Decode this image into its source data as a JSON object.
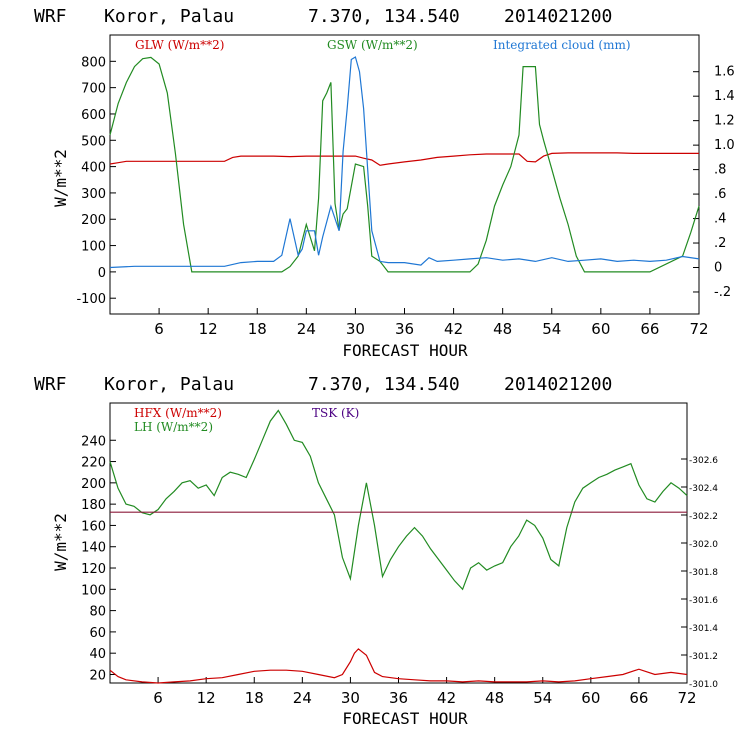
{
  "header_top": {
    "model": "WRF",
    "location": "Koror, Palau",
    "coords": "7.370, 134.540",
    "run": "2014021200"
  },
  "header_bottom": {
    "model": "WRF",
    "location": "Koror, Palau",
    "coords": "7.370, 134.540",
    "run": "2014021200"
  },
  "colors": {
    "red": "#cc0000",
    "green": "#228b22",
    "blue": "#1f77d4",
    "purple": "#4b0082",
    "dark_red": "#8b1a3a",
    "axis": "#000000"
  },
  "chart_data": [
    {
      "type": "line",
      "xlabel": "FORECAST HOUR",
      "ylabel": "W/m**2",
      "xlim": [
        0,
        72
      ],
      "ylim": [
        -160,
        900
      ],
      "y2lim": [
        -0.38,
        1.9
      ],
      "x_ticks": [
        6,
        12,
        18,
        24,
        30,
        36,
        42,
        48,
        54,
        60,
        66,
        72
      ],
      "y_ticks": [
        -100,
        0,
        100,
        200,
        300,
        400,
        500,
        600,
        700,
        800
      ],
      "y2_ticks": [
        "-.2",
        "0",
        ".2",
        ".4",
        ".6",
        ".8",
        "1.0",
        "1.2",
        "1.4",
        "1.6"
      ],
      "y2_tick_values": [
        -0.2,
        0,
        0.2,
        0.4,
        0.6,
        0.8,
        1.0,
        1.2,
        1.4,
        1.6
      ],
      "series": [
        {
          "name": "GLW (W/m**2)",
          "color": "#cc0000",
          "axis": "left",
          "x": [
            0,
            1,
            2,
            4,
            6,
            8,
            10,
            12,
            14,
            15,
            16,
            18,
            20,
            22,
            24,
            26,
            28,
            30,
            31,
            32,
            33,
            34,
            36,
            38,
            40,
            42,
            44,
            46,
            48,
            50,
            51,
            52,
            53,
            54,
            56,
            58,
            60,
            62,
            64,
            66,
            68,
            70,
            72
          ],
          "y": [
            410,
            415,
            420,
            420,
            420,
            420,
            420,
            420,
            420,
            435,
            440,
            440,
            440,
            438,
            440,
            440,
            440,
            440,
            432,
            425,
            405,
            410,
            418,
            425,
            435,
            440,
            445,
            448,
            448,
            448,
            420,
            418,
            440,
            450,
            452,
            452,
            452,
            452,
            450,
            450,
            450,
            450,
            450
          ]
        },
        {
          "name": "GSW (W/m**2)",
          "color": "#228b22",
          "axis": "left",
          "x": [
            0,
            1,
            2,
            3,
            4,
            5,
            6,
            7,
            8,
            9,
            10,
            12,
            18,
            21,
            21.5,
            22,
            23,
            24,
            25,
            25.5,
            26,
            26.5,
            27,
            27.5,
            28,
            28.5,
            29,
            30,
            31,
            31.5,
            32,
            33,
            34,
            36,
            40,
            44,
            45,
            46,
            47,
            48,
            49,
            50,
            50.5,
            52,
            52.5,
            53,
            54,
            55,
            56,
            57,
            58,
            60,
            66,
            70,
            71,
            72
          ],
          "y": [
            520,
            640,
            720,
            780,
            810,
            815,
            790,
            680,
            450,
            180,
            0,
            0,
            0,
            0,
            10,
            20,
            60,
            180,
            80,
            280,
            650,
            680,
            720,
            260,
            160,
            220,
            240,
            410,
            400,
            250,
            60,
            40,
            0,
            0,
            0,
            0,
            30,
            120,
            250,
            330,
            400,
            520,
            780,
            780,
            560,
            500,
            390,
            280,
            180,
            60,
            0,
            0,
            0,
            60,
            150,
            250
          ]
        },
        {
          "name": "Integrated cloud (mm)",
          "color": "#1f77d4",
          "axis": "right",
          "x": [
            0,
            3,
            6,
            10,
            14,
            16,
            18,
            20,
            21,
            22,
            23,
            23.5,
            24,
            25,
            25.5,
            26,
            27,
            28,
            28.5,
            29,
            29.5,
            30,
            30.5,
            31,
            31.5,
            32,
            33,
            34,
            36,
            38,
            39,
            40,
            42,
            44,
            46,
            48,
            50,
            52,
            54,
            56,
            58,
            60,
            62,
            64,
            66,
            68,
            70,
            72
          ],
          "y": [
            0,
            0.01,
            0.01,
            0.01,
            0.01,
            0.04,
            0.05,
            0.05,
            0.1,
            0.4,
            0.1,
            0.15,
            0.3,
            0.3,
            0.1,
            0.25,
            0.5,
            0.3,
            0.95,
            1.3,
            1.7,
            1.72,
            1.6,
            1.3,
            0.8,
            0.3,
            0.05,
            0.04,
            0.04,
            0.02,
            0.08,
            0.05,
            0.06,
            0.07,
            0.08,
            0.06,
            0.07,
            0.05,
            0.08,
            0.05,
            0.06,
            0.07,
            0.05,
            0.06,
            0.05,
            0.06,
            0.09,
            0.07
          ]
        }
      ]
    },
    {
      "type": "line",
      "xlabel": "FORECAST HOUR",
      "ylabel": "W/m**2",
      "xlim": [
        0,
        72
      ],
      "ylim": [
        12,
        275
      ],
      "y2lim": [
        301.0,
        303.0
      ],
      "x_ticks": [
        6,
        12,
        18,
        24,
        30,
        36,
        42,
        48,
        54,
        60,
        66,
        72
      ],
      "y_ticks": [
        20,
        40,
        60,
        80,
        100,
        120,
        140,
        160,
        180,
        200,
        220,
        240
      ],
      "y2_ticks": [
        "301.0",
        "301.2",
        "301.4",
        "301.6",
        "301.8",
        "302.0",
        "302.2",
        "302.4",
        "302.6"
      ],
      "y2_tick_values": [
        301.0,
        301.2,
        301.4,
        301.6,
        301.8,
        302.0,
        302.2,
        302.4,
        302.6
      ],
      "series": [
        {
          "name": "HFX (W/m**2)",
          "color": "#cc0000",
          "axis": "left",
          "x": [
            0,
            1,
            2,
            4,
            6,
            8,
            10,
            12,
            14,
            16,
            18,
            20,
            22,
            24,
            26,
            28,
            29,
            30,
            30.5,
            31,
            32,
            33,
            34,
            36,
            38,
            40,
            42,
            44,
            46,
            48,
            50,
            52,
            54,
            56,
            58,
            60,
            62,
            64,
            66,
            68,
            70,
            72
          ],
          "y": [
            24,
            18,
            15,
            13,
            12,
            13,
            14,
            16,
            17,
            20,
            23,
            24,
            24,
            23,
            20,
            17,
            20,
            32,
            40,
            44,
            38,
            22,
            18,
            16,
            15,
            14,
            14,
            13,
            14,
            13,
            13,
            13,
            14,
            13,
            14,
            16,
            18,
            20,
            25,
            20,
            22,
            20
          ]
        },
        {
          "name": "LH  (W/m**2)",
          "color": "#228b22",
          "axis": "left",
          "x": [
            0,
            1,
            2,
            3,
            4,
            5,
            6,
            7,
            8,
            9,
            10,
            11,
            12,
            13,
            14,
            15,
            16,
            17,
            18,
            19,
            20,
            21,
            22,
            23,
            24,
            25,
            26,
            27,
            28,
            29,
            30,
            31,
            32,
            33,
            34,
            35,
            36,
            37,
            38,
            39,
            40,
            41,
            42,
            43,
            44,
            45,
            46,
            47,
            48,
            49,
            50,
            51,
            52,
            53,
            54,
            55,
            56,
            57,
            58,
            59,
            60,
            61,
            62,
            63,
            64,
            65,
            66,
            67,
            68,
            69,
            70,
            71,
            72
          ],
          "y": [
            220,
            195,
            180,
            178,
            172,
            170,
            175,
            185,
            192,
            200,
            202,
            195,
            198,
            188,
            205,
            210,
            208,
            205,
            222,
            240,
            258,
            268,
            255,
            240,
            238,
            225,
            200,
            185,
            170,
            130,
            110,
            160,
            200,
            160,
            112,
            128,
            140,
            150,
            158,
            150,
            138,
            128,
            118,
            108,
            100,
            120,
            125,
            118,
            122,
            125,
            140,
            150,
            165,
            160,
            148,
            128,
            122,
            158,
            182,
            195,
            200,
            205,
            208,
            212,
            215,
            218,
            198,
            185,
            182,
            192,
            200,
            195,
            188
          ]
        },
        {
          "name": "TSK (K)",
          "color": "#8b1a3a",
          "axis": "right",
          "x": [
            0,
            72
          ],
          "y": [
            302.22,
            302.22
          ]
        }
      ]
    }
  ]
}
